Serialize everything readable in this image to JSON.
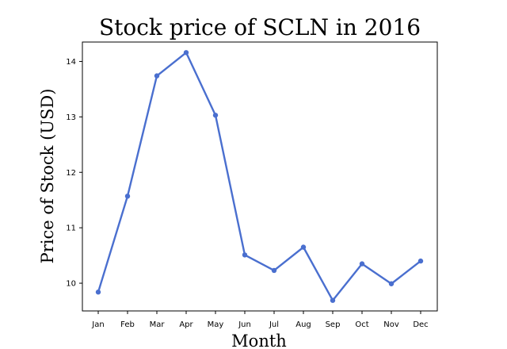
{
  "chart_data": {
    "type": "line",
    "title": "Stock price of SCLN in 2016",
    "xlabel": "Month",
    "ylabel": "Price of Stock (USD)",
    "categories": [
      "Jan",
      "Feb",
      "Mar",
      "Apr",
      "May",
      "Jun",
      "Jul",
      "Aug",
      "Sep",
      "Oct",
      "Nov",
      "Dec"
    ],
    "series": [
      {
        "values": [
          9.84,
          11.57,
          13.74,
          14.16,
          13.03,
          10.51,
          10.23,
          10.65,
          9.69,
          10.35,
          9.99,
          10.4
        ],
        "color": "#4a6fcf"
      }
    ],
    "ylim": [
      9.5,
      14.35
    ],
    "yticks": [
      10,
      11,
      12,
      13,
      14
    ],
    "grid": false,
    "legend": "none",
    "markers": true
  }
}
